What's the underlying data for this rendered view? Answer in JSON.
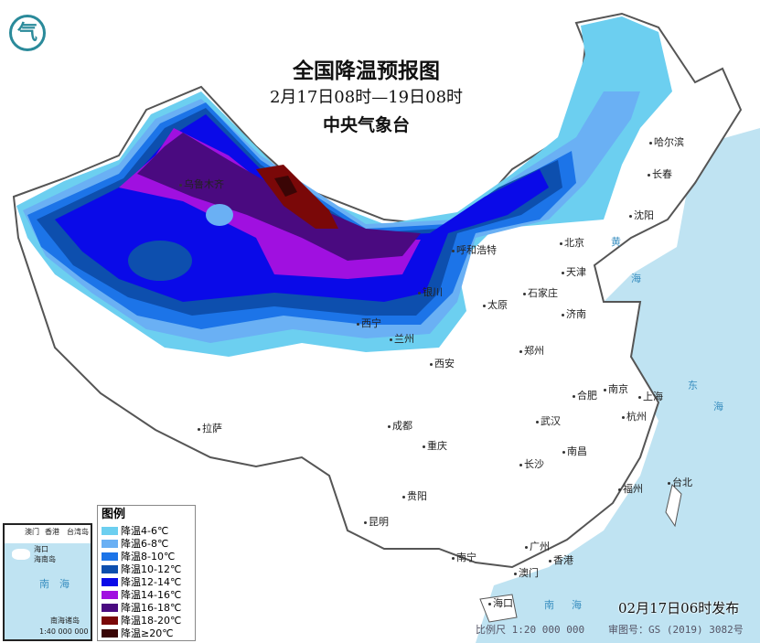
{
  "header": {
    "title": "全国降温预报图",
    "period": "2月17日08时—19日08时",
    "agency": "中央气象台"
  },
  "legend": {
    "title": "图例",
    "items": [
      {
        "label": "降温4-6℃",
        "color": "#6ccff0"
      },
      {
        "label": "降温6-8℃",
        "color": "#6ab0f4"
      },
      {
        "label": "降温8-10℃",
        "color": "#1c74e8"
      },
      {
        "label": "降温10-12℃",
        "color": "#0d4fae"
      },
      {
        "label": "降温12-14℃",
        "color": "#0a0ae8"
      },
      {
        "label": "降温14-16℃",
        "color": "#a010e0"
      },
      {
        "label": "降温16-18℃",
        "color": "#4a0a80"
      },
      {
        "label": "降温18-20℃",
        "color": "#7a0808"
      },
      {
        "label": "降温≥20℃",
        "color": "#3a0505"
      }
    ]
  },
  "cities": [
    {
      "name": "乌鲁木齐"
    },
    {
      "name": "呼和浩特"
    },
    {
      "name": "北京"
    },
    {
      "name": "天津"
    },
    {
      "name": "石家庄"
    },
    {
      "name": "太原"
    },
    {
      "name": "济南"
    },
    {
      "name": "银川"
    },
    {
      "name": "西宁"
    },
    {
      "name": "兰州"
    },
    {
      "name": "西安"
    },
    {
      "name": "郑州"
    },
    {
      "name": "哈尔滨"
    },
    {
      "name": "长春"
    },
    {
      "name": "沈阳"
    },
    {
      "name": "合肥"
    },
    {
      "name": "南京"
    },
    {
      "name": "上海"
    },
    {
      "name": "杭州"
    },
    {
      "name": "武汉"
    },
    {
      "name": "成都"
    },
    {
      "name": "重庆"
    },
    {
      "name": "拉萨"
    },
    {
      "name": "南昌"
    },
    {
      "name": "长沙"
    },
    {
      "name": "贵阳"
    },
    {
      "name": "福州"
    },
    {
      "name": "台北"
    },
    {
      "name": "昆明"
    },
    {
      "name": "南宁"
    },
    {
      "name": "广州"
    },
    {
      "name": "香港"
    },
    {
      "name": "澳门"
    },
    {
      "name": "海口"
    }
  ],
  "inset": {
    "labels": [
      "香港",
      "澳门",
      "台湾岛",
      "海口",
      "海南岛",
      "南",
      "海",
      "南海诸岛"
    ],
    "scale": "1:40 000 000"
  },
  "seas": [
    "黄",
    "海",
    "东",
    "海",
    "南",
    "海"
  ],
  "footer": {
    "published": "02月17日06时发布",
    "scale": "比例尺 1:20 000 000",
    "review_no": "审图号：GS (2019) 3082号"
  },
  "logo": "气"
}
